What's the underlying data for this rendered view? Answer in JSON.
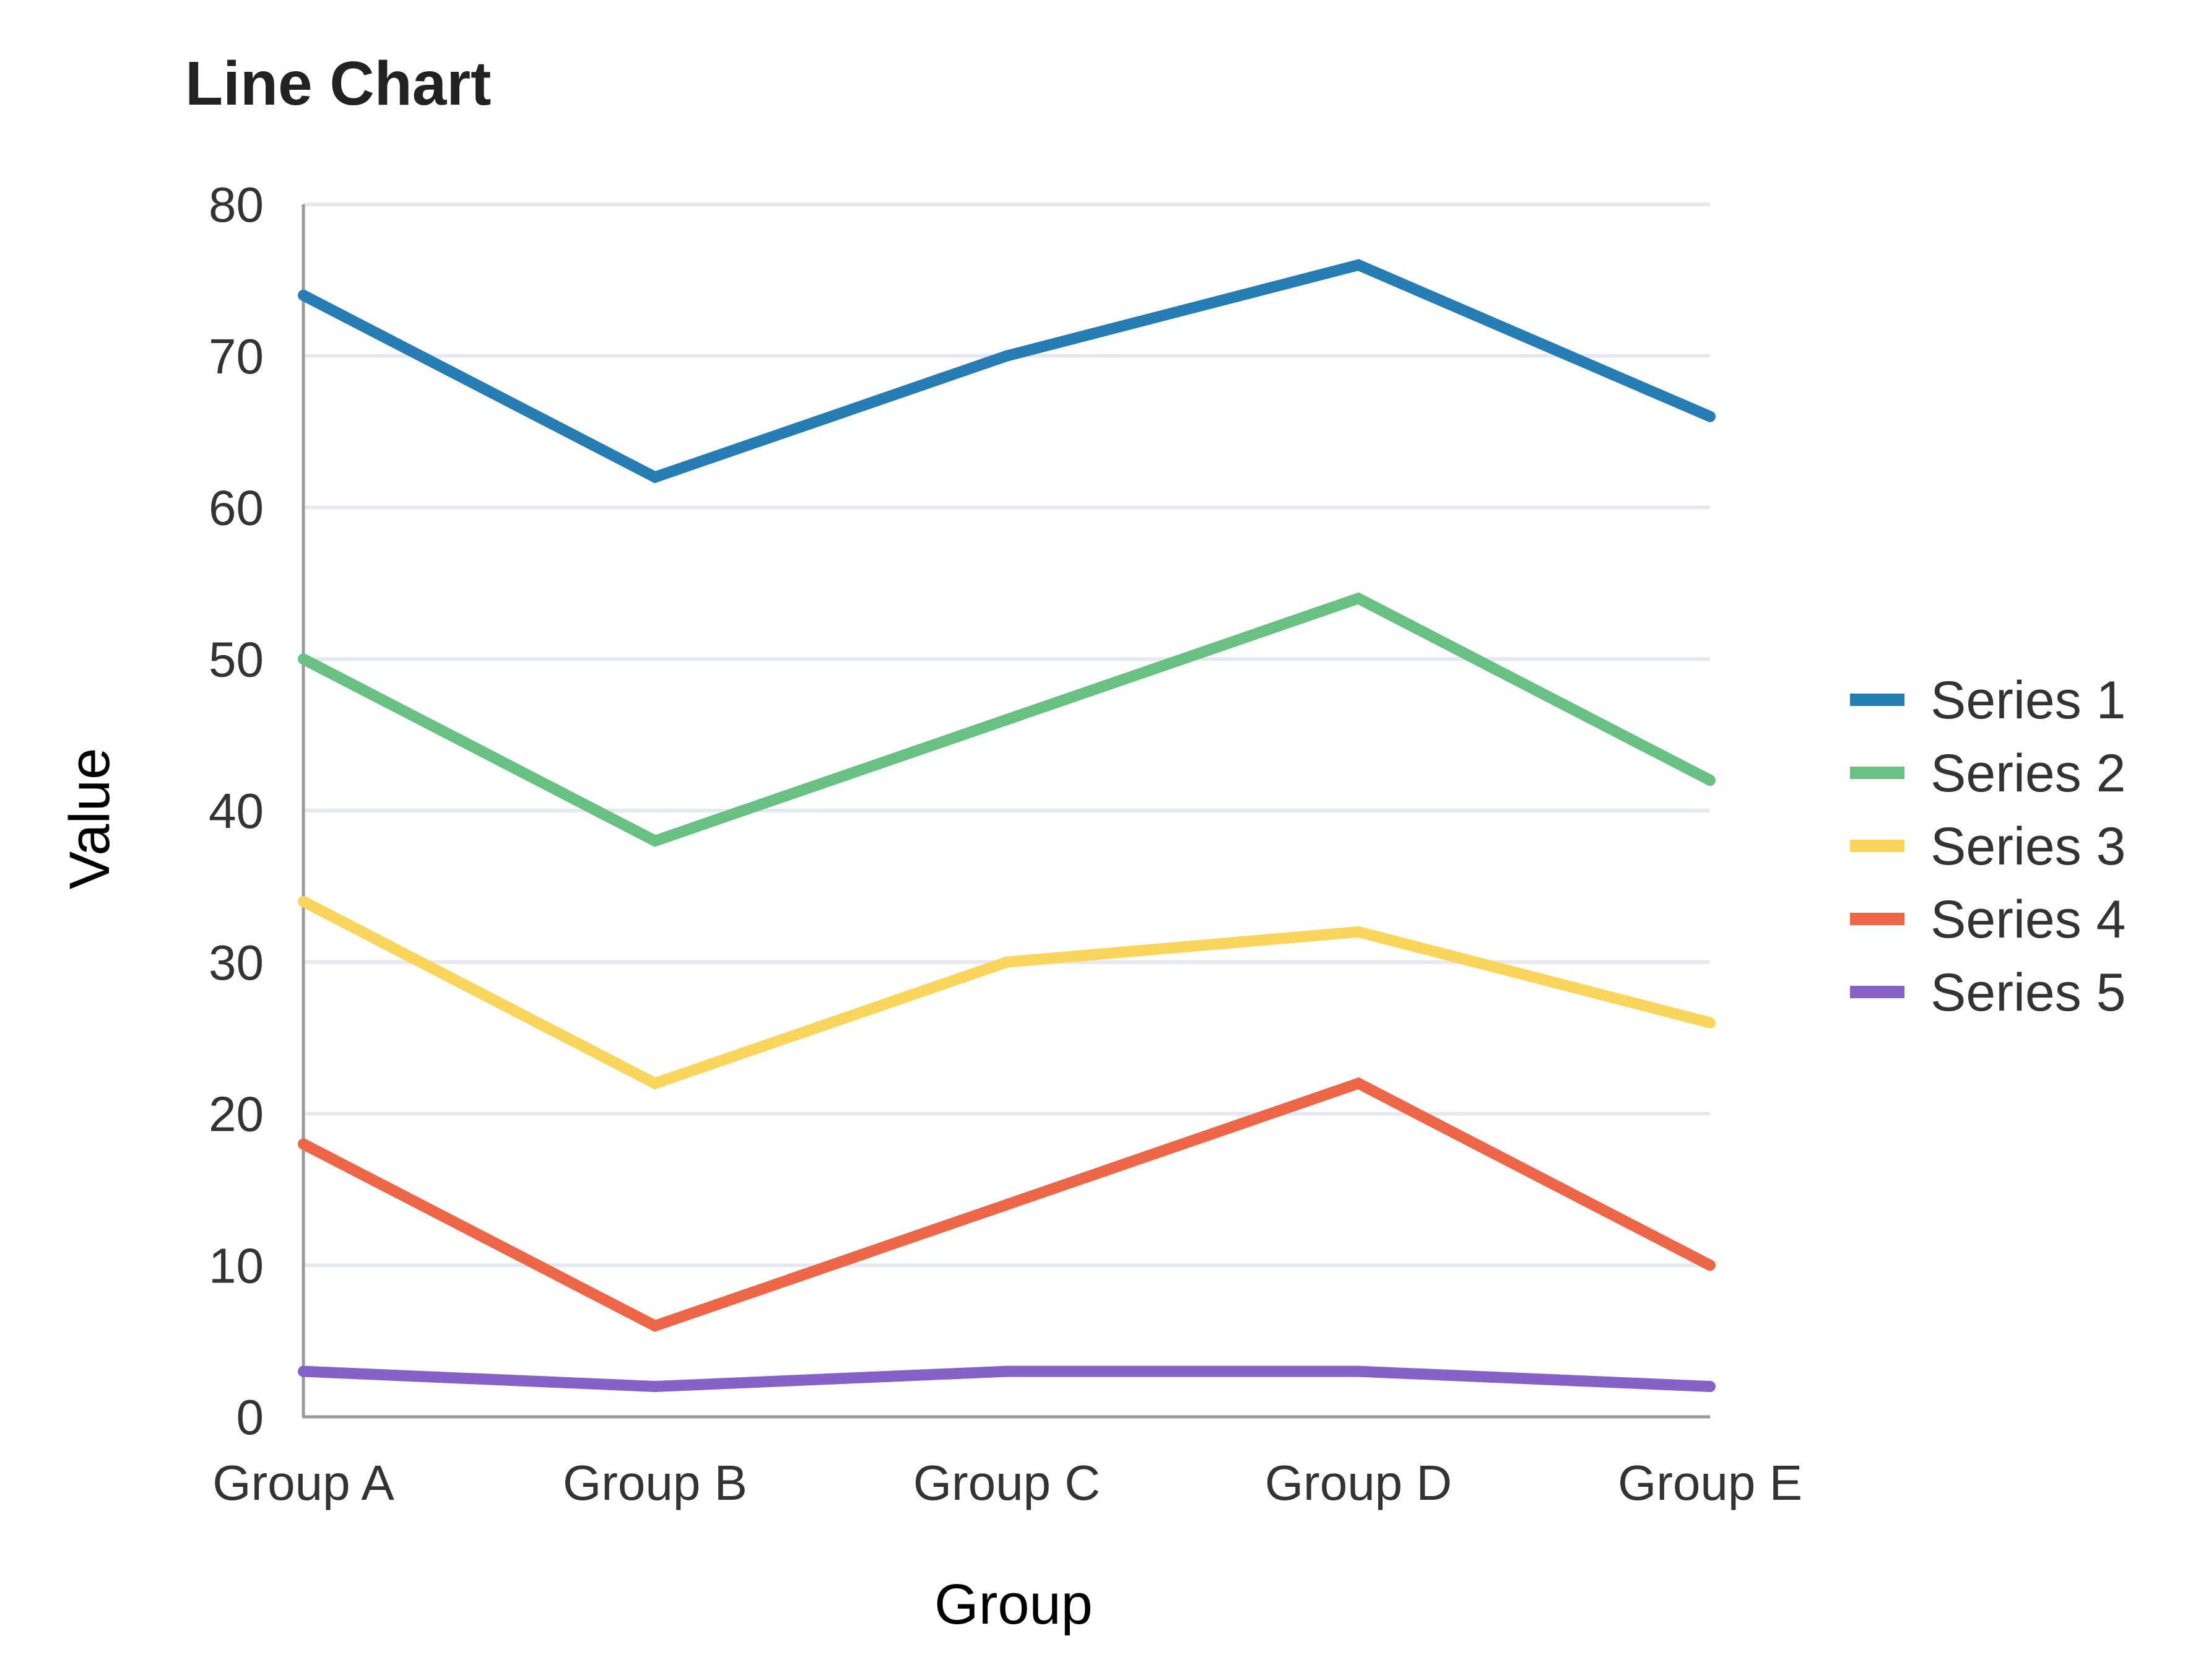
{
  "chart_data": {
    "type": "line",
    "title": "Line Chart",
    "xlabel": "Group",
    "ylabel": "Value",
    "categories": [
      "Group A",
      "Group B",
      "Group C",
      "Group D",
      "Group E"
    ],
    "ylim": [
      0,
      80
    ],
    "yticks": [
      0,
      10,
      20,
      30,
      40,
      50,
      60,
      70,
      80
    ],
    "grid": true,
    "legend_position": "right",
    "series": [
      {
        "name": "Series 1",
        "color": "#267db3",
        "values": [
          74,
          62,
          70,
          76,
          66
        ]
      },
      {
        "name": "Series 2",
        "color": "#68c182",
        "values": [
          50,
          38,
          46,
          54,
          42
        ]
      },
      {
        "name": "Series 3",
        "color": "#fad55c",
        "values": [
          34,
          22,
          30,
          32,
          26
        ]
      },
      {
        "name": "Series 4",
        "color": "#ed6647",
        "values": [
          18,
          6,
          14,
          22,
          10
        ]
      },
      {
        "name": "Series 5",
        "color": "#8561c8",
        "values": [
          3,
          2,
          3,
          3,
          2
        ]
      }
    ]
  }
}
